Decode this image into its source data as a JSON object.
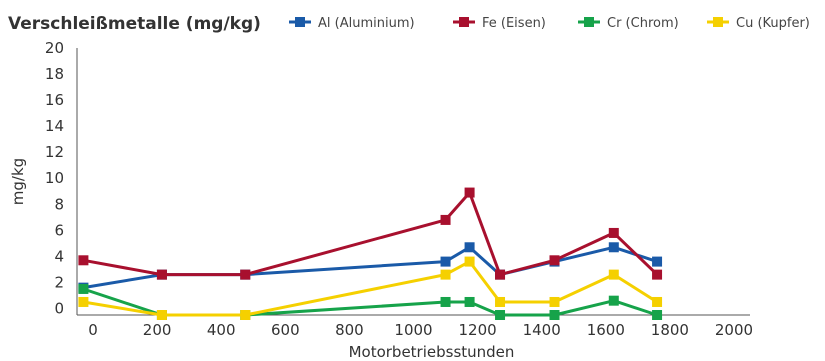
{
  "chart_data": {
    "type": "line",
    "title": "Verschleißmetalle (mg/kg)",
    "xlabel": "Motorbetriebsstunden",
    "ylabel": "mg/kg",
    "xlim": [
      -50,
      2050
    ],
    "ylim": [
      -0.5,
      20
    ],
    "xticks": [
      0,
      200,
      400,
      600,
      800,
      1000,
      1200,
      1400,
      1600,
      1800,
      2000
    ],
    "yticks": [
      0,
      2,
      4,
      6,
      8,
      10,
      12,
      14,
      16,
      18,
      20
    ],
    "grid": false,
    "legend_position": "top",
    "series": [
      {
        "name": "Al (Aluminium)",
        "color": "#1a5aa8",
        "points": [
          [
            -30,
            1.6
          ],
          [
            215,
            2.6
          ],
          [
            475,
            2.6
          ],
          [
            1100,
            3.6
          ],
          [
            1175,
            4.7
          ],
          [
            1270,
            2.6
          ],
          [
            1440,
            3.6
          ],
          [
            1625,
            4.7
          ],
          [
            1760,
            3.6
          ]
        ]
      },
      {
        "name": "Fe (Eisen)",
        "color": "#a8102e",
        "points": [
          [
            -30,
            3.7
          ],
          [
            215,
            2.6
          ],
          [
            475,
            2.6
          ],
          [
            1100,
            6.8
          ],
          [
            1175,
            8.9
          ],
          [
            1270,
            2.6
          ],
          [
            1440,
            3.7
          ],
          [
            1625,
            5.8
          ],
          [
            1760,
            2.6
          ]
        ]
      },
      {
        "name": "Cr (Chrom)",
        "color": "#16a34a",
        "points": [
          [
            -30,
            1.5
          ],
          [
            215,
            -0.5
          ],
          [
            475,
            -0.5
          ],
          [
            1100,
            0.5
          ],
          [
            1175,
            0.5
          ],
          [
            1270,
            -0.5
          ],
          [
            1440,
            -0.5
          ],
          [
            1625,
            0.6
          ],
          [
            1760,
            -0.5
          ]
        ]
      },
      {
        "name": "Cu (Kupfer)",
        "color": "#f5d000",
        "points": [
          [
            -30,
            0.5
          ],
          [
            215,
            -0.5
          ],
          [
            475,
            -0.5
          ],
          [
            1100,
            2.6
          ],
          [
            1175,
            3.6
          ],
          [
            1270,
            0.5
          ],
          [
            1440,
            0.5
          ],
          [
            1625,
            2.6
          ],
          [
            1760,
            0.5
          ]
        ]
      }
    ]
  }
}
